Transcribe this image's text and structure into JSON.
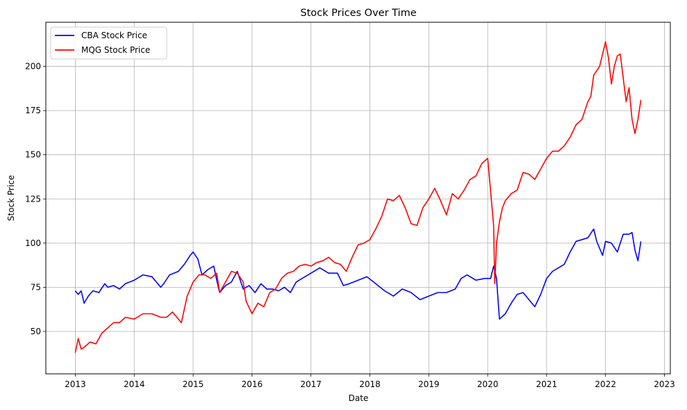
{
  "chart_data": {
    "type": "line",
    "title": "Stock Prices Over Time",
    "xlabel": "Date",
    "ylabel": "Stock Price",
    "xlim": [
      2012.5,
      2023.1
    ],
    "ylim": [
      26,
      225
    ],
    "x_ticks": [
      2013,
      2014,
      2015,
      2016,
      2017,
      2018,
      2019,
      2020,
      2021,
      2022,
      2023
    ],
    "y_ticks": [
      50,
      75,
      100,
      125,
      150,
      175,
      200
    ],
    "grid": true,
    "legend_position": "top-left",
    "series": [
      {
        "name": "CBA Stock Price",
        "color": "#0000ff",
        "x": [
          2013.0,
          2013.05,
          2013.1,
          2013.15,
          2013.22,
          2013.3,
          2013.4,
          2013.5,
          2013.55,
          2013.65,
          2013.75,
          2013.85,
          2014.0,
          2014.15,
          2014.3,
          2014.45,
          2014.5,
          2014.6,
          2014.75,
          2014.85,
          2014.95,
          2015.0,
          2015.08,
          2015.15,
          2015.25,
          2015.35,
          2015.4,
          2015.45,
          2015.55,
          2015.65,
          2015.75,
          2015.85,
          2015.95,
          2016.05,
          2016.15,
          2016.25,
          2016.35,
          2016.45,
          2016.55,
          2016.65,
          2016.75,
          2016.85,
          2017.0,
          2017.15,
          2017.3,
          2017.45,
          2017.55,
          2017.65,
          2017.8,
          2017.95,
          2018.1,
          2018.25,
          2018.4,
          2018.55,
          2018.7,
          2018.85,
          2019.0,
          2019.15,
          2019.3,
          2019.45,
          2019.55,
          2019.65,
          2019.8,
          2019.95,
          2020.05,
          2020.1,
          2020.15,
          2020.2,
          2020.3,
          2020.4,
          2020.5,
          2020.6,
          2020.7,
          2020.8,
          2020.9,
          2021.0,
          2021.1,
          2021.2,
          2021.3,
          2021.4,
          2021.5,
          2021.6,
          2021.7,
          2021.8,
          2021.85,
          2021.95,
          2022.0,
          2022.1,
          2022.2,
          2022.3,
          2022.4,
          2022.45,
          2022.5,
          2022.55,
          2022.6
        ],
        "y": [
          73,
          71,
          73,
          66,
          70,
          73,
          72,
          77,
          75,
          76,
          74,
          77,
          79,
          82,
          81,
          75,
          77,
          82,
          84,
          88,
          93,
          95,
          91,
          82,
          85,
          87,
          79,
          72,
          76,
          78,
          84,
          74,
          76,
          72,
          77,
          74,
          74,
          73,
          75,
          72,
          78,
          80,
          83,
          86,
          83,
          83,
          76,
          77,
          79,
          81,
          77,
          73,
          70,
          74,
          72,
          68,
          70,
          72,
          72,
          74,
          80,
          82,
          79,
          80,
          80,
          87,
          80,
          57,
          60,
          66,
          71,
          72,
          68,
          64,
          71,
          80,
          84,
          86,
          88,
          95,
          101,
          102,
          103,
          108,
          101,
          93,
          101,
          100,
          95,
          105,
          105,
          106,
          96,
          90,
          101
        ]
      },
      {
        "name": "MQG Stock Price",
        "color": "#ff0000",
        "x": [
          2013.0,
          2013.05,
          2013.1,
          2013.15,
          2013.25,
          2013.35,
          2013.45,
          2013.55,
          2013.65,
          2013.75,
          2013.85,
          2014.0,
          2014.15,
          2014.3,
          2014.45,
          2014.55,
          2014.65,
          2014.75,
          2014.8,
          2014.9,
          2015.0,
          2015.1,
          2015.2,
          2015.3,
          2015.4,
          2015.45,
          2015.55,
          2015.65,
          2015.75,
          2015.85,
          2015.9,
          2016.0,
          2016.1,
          2016.2,
          2016.3,
          2016.4,
          2016.5,
          2016.6,
          2016.7,
          2016.8,
          2016.9,
          2017.0,
          2017.1,
          2017.2,
          2017.3,
          2017.4,
          2017.5,
          2017.6,
          2017.7,
          2017.8,
          2017.9,
          2018.0,
          2018.1,
          2018.2,
          2018.3,
          2018.4,
          2018.5,
          2018.6,
          2018.7,
          2018.8,
          2018.9,
          2019.0,
          2019.1,
          2019.2,
          2019.3,
          2019.4,
          2019.5,
          2019.6,
          2019.7,
          2019.8,
          2019.9,
          2020.0,
          2020.1,
          2020.12,
          2020.15,
          2020.2,
          2020.25,
          2020.3,
          2020.4,
          2020.5,
          2020.6,
          2020.7,
          2020.8,
          2020.9,
          2021.0,
          2021.1,
          2021.2,
          2021.3,
          2021.4,
          2021.5,
          2021.6,
          2021.7,
          2021.75,
          2021.8,
          2021.9,
          2022.0,
          2022.05,
          2022.1,
          2022.15,
          2022.2,
          2022.25,
          2022.35,
          2022.4,
          2022.45,
          2022.5,
          2022.55,
          2022.6
        ],
        "y": [
          38,
          46,
          40,
          41,
          44,
          43,
          49,
          52,
          55,
          55,
          58,
          57,
          60,
          60,
          58,
          58,
          61,
          57,
          55,
          70,
          78,
          82,
          82,
          80,
          83,
          72,
          78,
          84,
          83,
          78,
          67,
          60,
          66,
          64,
          72,
          74,
          80,
          83,
          84,
          87,
          88,
          87,
          89,
          90,
          92,
          89,
          88,
          84,
          92,
          99,
          100,
          102,
          108,
          115,
          125,
          124,
          127,
          120,
          111,
          110,
          120,
          125,
          131,
          124,
          116,
          128,
          125,
          130,
          136,
          138,
          145,
          148,
          110,
          77,
          100,
          112,
          120,
          124,
          128,
          130,
          140,
          139,
          136,
          142,
          148,
          152,
          152,
          155,
          160,
          167,
          170,
          180,
          183,
          195,
          200,
          214,
          205,
          190,
          200,
          206,
          207,
          180,
          188,
          170,
          162,
          170,
          181
        ]
      }
    ]
  }
}
